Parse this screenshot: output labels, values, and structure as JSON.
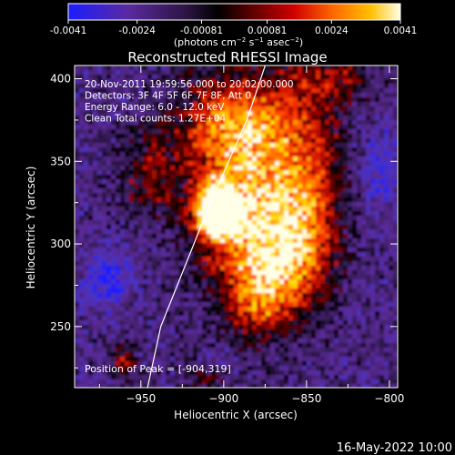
{
  "colorbar": {
    "ticks": [
      "-0.0041",
      "-0.0024",
      "-0.00081",
      "0.00081",
      "0.0024",
      "0.0041"
    ],
    "tick_values": [
      -0.0041,
      -0.0024,
      -0.00081,
      0.00081,
      0.0024,
      0.0041
    ],
    "range": [
      -0.0041,
      0.0041
    ],
    "units_parts": [
      "(photons cm",
      "−2",
      " s",
      "−1",
      " asec",
      "−2",
      ")"
    ]
  },
  "chart_data": {
    "type": "heatmap",
    "title": "Reconstructed RHESSI Image",
    "xlabel": "Heliocentric X (arcsec)",
    "ylabel": "Heliocentric Y (arcsec)",
    "xlim": [
      -990,
      -795
    ],
    "ylim": [
      213,
      408
    ],
    "x_ticks": [
      -950,
      -900,
      -850,
      -800
    ],
    "x_tick_labels": [
      "−950",
      "−900",
      "−850",
      "−800"
    ],
    "y_ticks": [
      250,
      300,
      350,
      400
    ],
    "y_tick_labels": [
      "250",
      "300",
      "350",
      "400"
    ],
    "peak": {
      "x": -904,
      "y": 319
    },
    "limb_curve": [
      [
        -946,
        213
      ],
      [
        -938,
        250
      ],
      [
        -926,
        280
      ],
      [
        -910,
        320
      ],
      [
        -897,
        350
      ],
      [
        -886,
        375
      ],
      [
        -875,
        408
      ]
    ],
    "annotations": [
      "20-Nov-2011 19:59:56.000 to 20:02:00.000",
      "Detectors: 3F 4F 5F 6F 7F 8F, Att 0",
      "Energy Range: 6.0 - 12.0 keV",
      "Clean     Total counts: 1.27E+04"
    ],
    "peak_label": "Position of Peak = [-904,319]",
    "colorscale": [
      "#1c1cff",
      "#3b30d8",
      "#5a2aa0",
      "#3a1e5e",
      "#000000",
      "#5a0000",
      "#b00000",
      "#ff2a00",
      "#ff8a00",
      "#ffd000",
      "#ffffe8"
    ]
  },
  "footer": {
    "date": "16-May-2022 10:00"
  }
}
